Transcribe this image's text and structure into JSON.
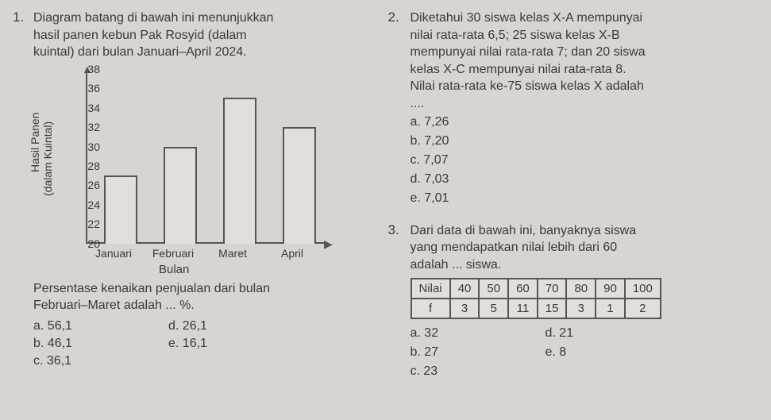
{
  "q1": {
    "number": "1.",
    "text_l1": "Diagram batang di bawah ini menunjukkan",
    "text_l2": "hasil panen kebun Pak Rosyid (dalam",
    "text_l3": "kuintal) dari bulan Januari–April 2024.",
    "chart": {
      "type": "bar",
      "ylabel1": "Hasil Panen",
      "ylabel2": "(dalam Kuintal)",
      "xlabel": "Bulan",
      "y_min": 20,
      "y_max": 38,
      "y_step": 2,
      "yticks": [
        "20",
        "22",
        "24",
        "26",
        "28",
        "30",
        "32",
        "34",
        "36",
        "38"
      ],
      "categories": [
        "Januari",
        "Februari",
        "Maret",
        "April"
      ],
      "values": [
        27,
        30,
        35,
        32
      ],
      "bar_border": "#555555",
      "bar_fill": "#e2ded9",
      "axis_color": "#555555",
      "background": "#d8d4d0",
      "font_size": 14
    },
    "sub_l1": "Persentase kenaikan penjualan dari bulan",
    "sub_l2": "Februari–Maret adalah ... %.",
    "options": {
      "a": "a. 56,1",
      "b": "b. 46,1",
      "c": "c. 36,1",
      "d": "d. 26,1",
      "e": "e. 16,1"
    }
  },
  "q2": {
    "number": "2.",
    "text_l1": "Diketahui 30 siswa kelas X-A mempunyai",
    "text_l2": "nilai rata-rata 6,5; 25 siswa kelas X-B",
    "text_l3": "mempunyai nilai rata-rata 7; dan 20 siswa",
    "text_l4": "kelas X-C mempunyai nilai rata-rata 8.",
    "text_l5": "Nilai rata-rata ke-75 siswa kelas X adalah",
    "text_l6": "....",
    "options": {
      "a": "a. 7,26",
      "b": "b. 7,20",
      "c": "c. 7,07",
      "d": "d. 7,03",
      "e": "e. 7,01"
    }
  },
  "q3": {
    "number": "3.",
    "text_l1": "Dari data di bawah ini, banyaknya siswa",
    "text_l2": "yang mendapatkan nilai lebih dari 60",
    "text_l3": "adalah ... siswa.",
    "table": {
      "header_label": "Nilai",
      "freq_label": "f",
      "columns": [
        "40",
        "50",
        "60",
        "70",
        "80",
        "90",
        "100"
      ],
      "freqs": [
        "3",
        "5",
        "11",
        "15",
        "3",
        "1",
        "2"
      ],
      "border_color": "#555555",
      "cell_bg": "#e2ded9"
    },
    "options": {
      "a": "a. 32",
      "b": "b. 27",
      "c": "c. 23",
      "d": "d. 21",
      "e": "e. 8"
    }
  }
}
